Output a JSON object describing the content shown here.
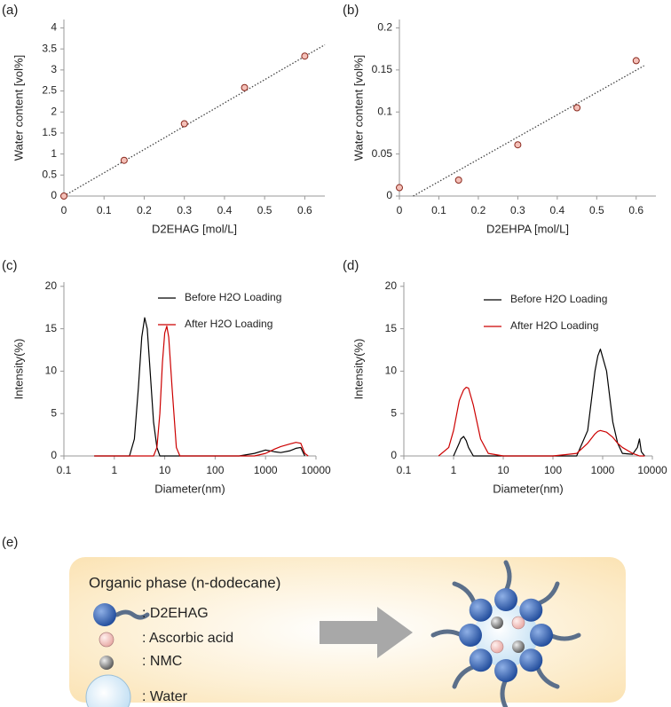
{
  "chart_data": [
    {
      "type": "scatter",
      "panel_label": "(a)",
      "x_label": "D2EHAG [mol/L]",
      "y_label": "Water content [vol%]",
      "x": [
        0,
        0.15,
        0.3,
        0.45,
        0.6
      ],
      "values": [
        0,
        0.85,
        1.72,
        2.58,
        3.33
      ],
      "color": "#f4c0b8",
      "trendline": {
        "x": [
          0,
          0.65
        ],
        "y": [
          0,
          3.6
        ]
      },
      "xlim": [
        0,
        0.65
      ],
      "xticks": [
        0,
        0.1,
        0.2,
        0.3,
        0.4,
        0.5,
        0.6
      ],
      "ylim": [
        0,
        4.2
      ],
      "yticks": [
        0,
        0.5,
        1,
        1.5,
        2,
        2.5,
        3,
        3.5,
        4
      ]
    },
    {
      "type": "scatter",
      "panel_label": "(b)",
      "x_label": "D2EHPA [mol/L]",
      "y_label": "Water content [vol%]",
      "x": [
        0,
        0.15,
        0.3,
        0.45,
        0.6
      ],
      "values": [
        0.01,
        0.019,
        0.061,
        0.105,
        0.161
      ],
      "color": "#f4c0b8",
      "trendline": {
        "x": [
          0.035,
          0.62
        ],
        "y": [
          0,
          0.155
        ]
      },
      "xlim": [
        0,
        0.65
      ],
      "xticks": [
        0,
        0.1,
        0.2,
        0.3,
        0.4,
        0.5,
        0.6
      ],
      "ylim": [
        0,
        0.21
      ],
      "yticks": [
        0,
        0.05,
        0.1,
        0.15,
        0.2
      ]
    },
    {
      "type": "line",
      "panel_label": "(c)",
      "x_label": "Diameter(nm)",
      "y_label": "Intensity(%)",
      "xscale": "log",
      "x": [
        0.4,
        1,
        2,
        2.5,
        3,
        3.5,
        4,
        4.5,
        5,
        6,
        7,
        8,
        9,
        10,
        11,
        12,
        14,
        17,
        20,
        50,
        300,
        600,
        1000,
        1500,
        2000,
        3000,
        4000,
        5000,
        6000,
        7000
      ],
      "series": [
        {
          "name": "Before H2O Loading",
          "color": "#000000",
          "values": [
            0,
            0,
            0,
            2,
            8,
            14,
            16.3,
            15,
            11,
            4,
            1,
            0,
            0,
            0,
            0,
            0,
            0,
            0,
            0,
            0,
            0,
            0.3,
            0.7,
            0.5,
            0.4,
            0.6,
            0.9,
            1.0,
            0,
            null
          ]
        },
        {
          "name": "After H2O Loading",
          "color": "#cc0000",
          "values": [
            0,
            0,
            0,
            0,
            0,
            0,
            0,
            0,
            0,
            0,
            1,
            5,
            11,
            14.5,
            15.3,
            14,
            8,
            1,
            0,
            0,
            0,
            0,
            0.3,
            0.8,
            1.1,
            1.4,
            1.6,
            1.5,
            0.3,
            0
          ]
        }
      ],
      "xlim": [
        0.1,
        10000
      ],
      "xticks": [
        0.1,
        1,
        10,
        100,
        1000,
        10000
      ],
      "ylim": [
        0,
        20.5
      ],
      "yticks": [
        0,
        5,
        10,
        15,
        20
      ]
    },
    {
      "type": "line",
      "panel_label": "(d)",
      "x_label": "Diameter(nm)",
      "y_label": "Intensity(%)",
      "xscale": "log",
      "x": [
        0.5,
        0.8,
        1,
        1.3,
        1.4,
        1.6,
        1.8,
        2,
        2.5,
        3.5,
        5,
        10,
        100,
        300,
        500,
        700,
        800,
        900,
        1200,
        1600,
        2000,
        2500,
        4000,
        5000,
        5500,
        6000,
        7000
      ],
      "series": [
        {
          "name": "Before H2O Loading",
          "color": "#000000",
          "values": [
            null,
            null,
            0,
            1.5,
            2.0,
            2.3,
            1.8,
            1,
            0,
            0,
            0,
            0,
            0,
            0,
            3,
            10,
            11.8,
            12.6,
            10,
            4,
            1.5,
            0.3,
            0.2,
            1,
            2,
            0.5,
            0
          ]
        },
        {
          "name": "After H2O Loading",
          "color": "#cc0000",
          "values": [
            0,
            1,
            3,
            6.5,
            7,
            7.8,
            8.1,
            8,
            6,
            2,
            0.3,
            0,
            0,
            0.3,
            1.5,
            2.6,
            2.9,
            3,
            2.8,
            2.2,
            1.5,
            1,
            0.3,
            0.1,
            0,
            0,
            0
          ]
        }
      ],
      "xlim": [
        0.1,
        10000
      ],
      "xticks": [
        0.1,
        1,
        10,
        100,
        1000,
        10000
      ],
      "ylim": [
        0,
        20.5
      ],
      "yticks": [
        0,
        5,
        10,
        15,
        20
      ]
    }
  ],
  "diagram": {
    "panel_label": "(e)",
    "title": "Organic phase (n-dodecane)",
    "legend": [
      ": D2EHAG",
      ": Ascorbic acid",
      ": NMC",
      ": Water"
    ]
  }
}
